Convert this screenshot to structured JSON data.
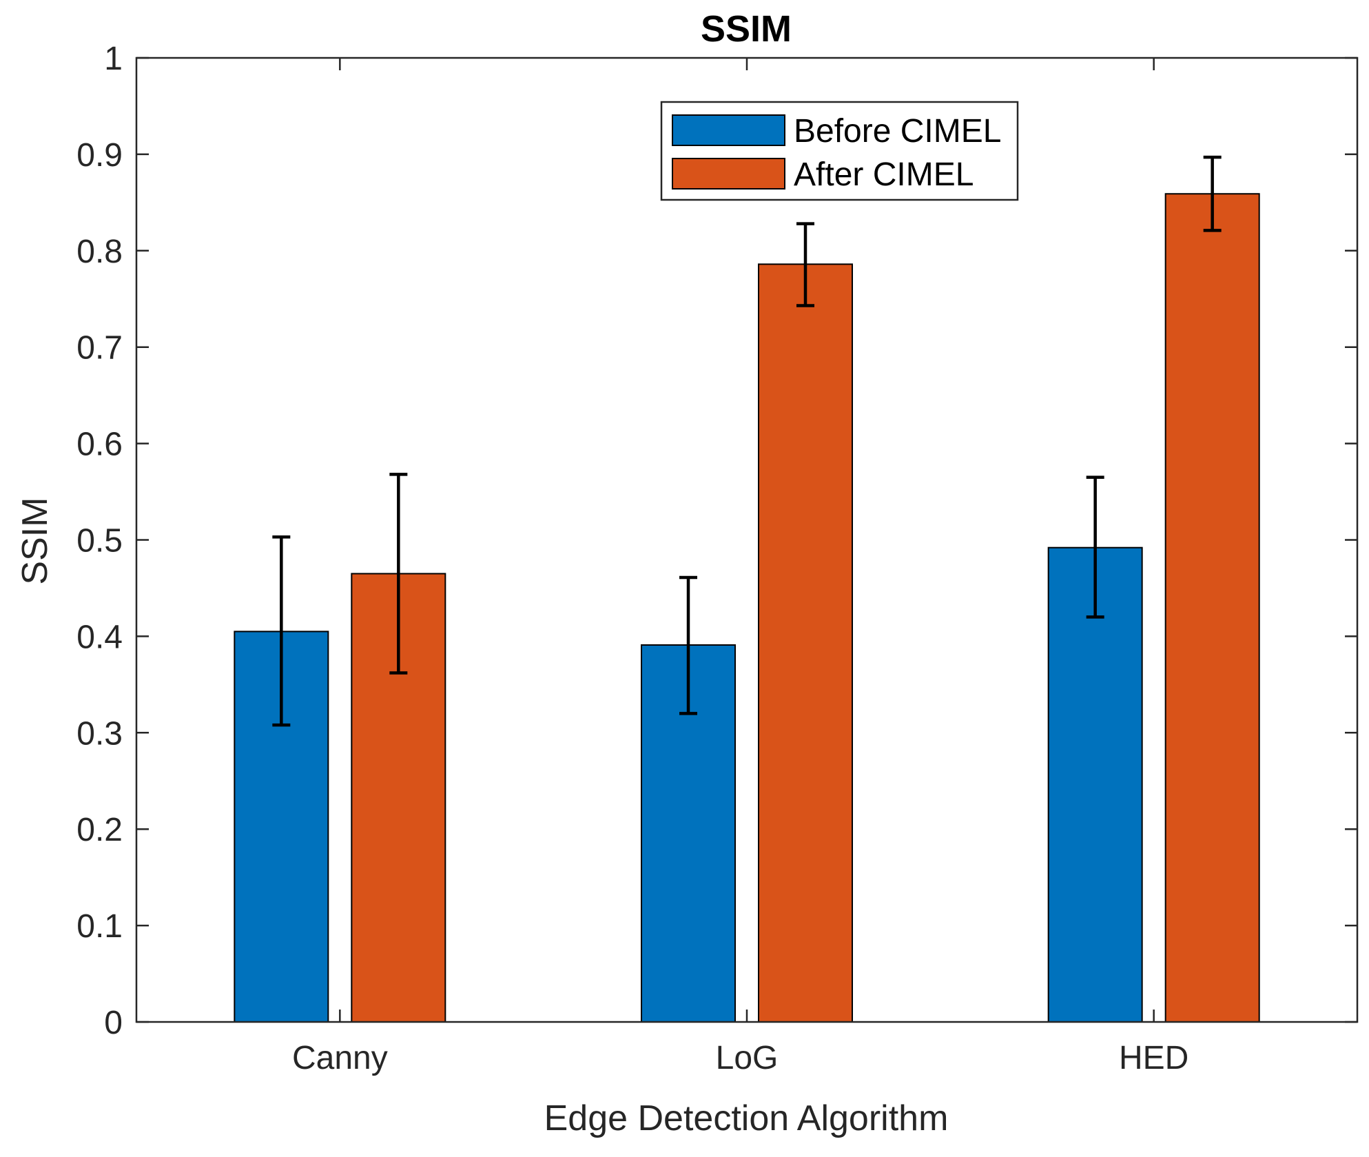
{
  "chart_data": {
    "type": "bar",
    "title": "SSIM",
    "xlabel": "Edge Detection Algorithm",
    "ylabel": "SSIM",
    "ylim": [
      0,
      1
    ],
    "yticks": [
      "0",
      "0.1",
      "0.2",
      "0.3",
      "0.4",
      "0.5",
      "0.6",
      "0.7",
      "0.8",
      "0.9",
      "1"
    ],
    "categories": [
      "Canny",
      "LoG",
      "HED"
    ],
    "series": [
      {
        "name": "Before CIMEL",
        "color": "#0072BD",
        "values": [
          0.405,
          0.391,
          0.492
        ],
        "error_low": [
          0.308,
          0.32,
          0.42
        ],
        "error_high": [
          0.503,
          0.461,
          0.565
        ]
      },
      {
        "name": "After CIMEL",
        "color": "#D95319",
        "values": [
          0.465,
          0.786,
          0.859
        ],
        "error_low": [
          0.362,
          0.743,
          0.821
        ],
        "error_high": [
          0.568,
          0.828,
          0.897
        ]
      }
    ],
    "grid": false,
    "legend_position": "top-center"
  }
}
